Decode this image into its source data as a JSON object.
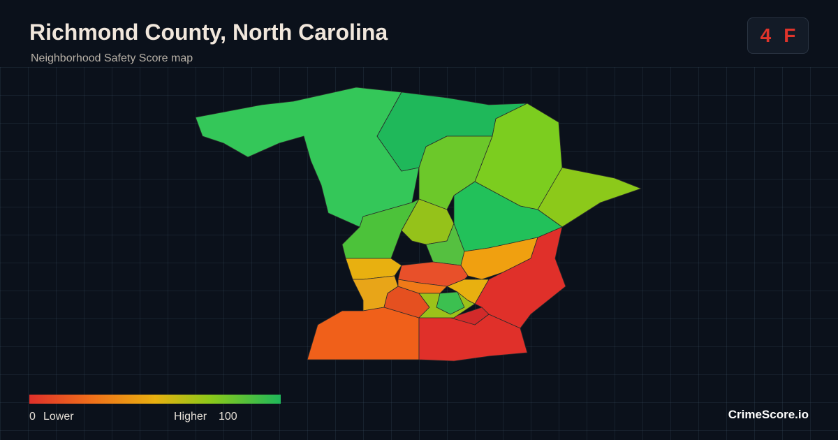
{
  "header": {
    "title": "Richmond County, North Carolina",
    "subtitle": "Neighborhood Safety Score map"
  },
  "grade": {
    "score": 4,
    "letter": "F"
  },
  "legend": {
    "min": 0,
    "min_label": "Lower",
    "max_label": "Higher",
    "max": 100
  },
  "footer": {
    "brand": "CrimeScore.io"
  }
}
